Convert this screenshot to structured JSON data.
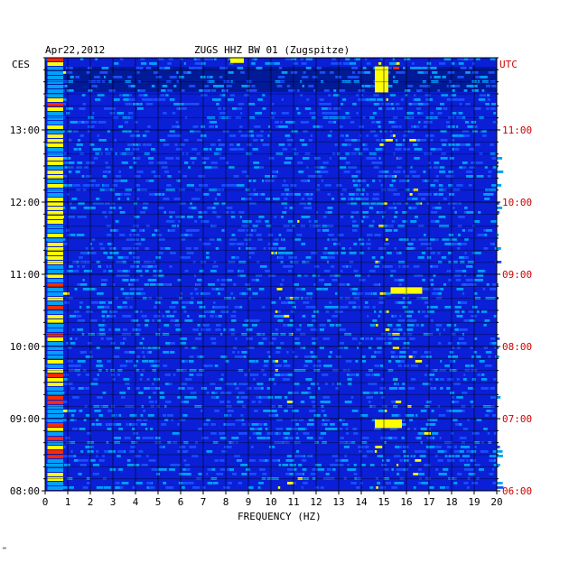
{
  "header": {
    "date": "Apr22,2012",
    "station": "ZUGS HHZ BW 01 (Zugspitze)"
  },
  "chart_data": {
    "type": "heatmap",
    "title": "ZUGS HHZ BW 01 (Zugspitze)",
    "date": "Apr22,2012",
    "xlabel": "FREQUENCY (HZ)",
    "xlim": [
      0,
      20
    ],
    "x_ticks": [
      "0",
      "1",
      "2",
      "3",
      "4",
      "5",
      "6",
      "7",
      "8",
      "9",
      "10",
      "11",
      "12",
      "13",
      "14",
      "15",
      "16",
      "17",
      "18",
      "19",
      "20"
    ],
    "left_axis_label": "CES",
    "right_axis_label": "UTC",
    "left_ticks": [
      "13:00",
      "12:00",
      "11:00",
      "10:00",
      "09:00",
      "08:00"
    ],
    "right_ticks": [
      "11:00",
      "10:00",
      "09:00",
      "08:00",
      "07:00",
      "06:00"
    ],
    "time_range_ces": [
      "08:00",
      "14:00"
    ],
    "grid": true,
    "colors": {
      "background": "#0a1fd6",
      "low": "#001a8c",
      "mid": "#00a0ff",
      "high": "#ffff00",
      "peak": "#ff2a00",
      "utc_label": "#cc0000"
    },
    "features": [
      {
        "freq_range": [
          0.1,
          0.8
        ],
        "intensity": "high",
        "note": "persistent low-frequency energy"
      },
      {
        "freq_range": [
          10.0,
          11.2
        ],
        "intensity": "medium",
        "note": "recurring band"
      },
      {
        "freq_range": [
          14.4,
          15.6
        ],
        "intensity": "high",
        "note": "bursts near 09:00 and 13:40"
      },
      {
        "freq_range": [
          15.2,
          16.8
        ],
        "intensity": "medium",
        "note": "burst near 10:45"
      }
    ]
  },
  "footer": {
    "mark": "℠"
  }
}
